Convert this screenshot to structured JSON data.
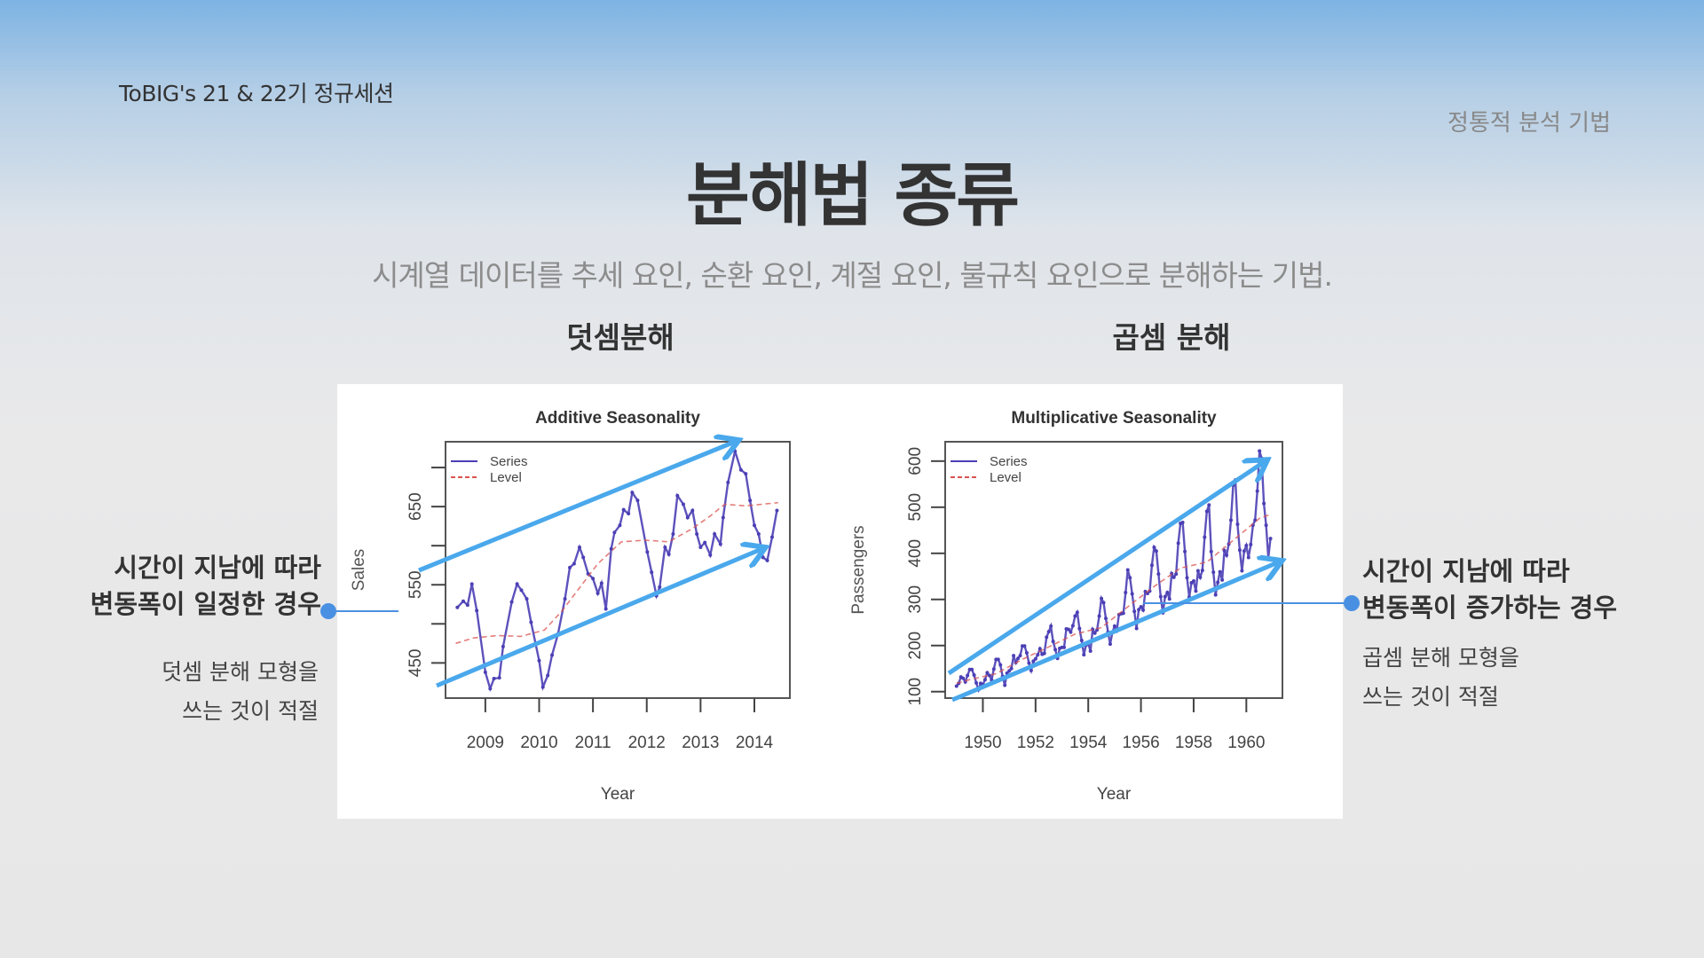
{
  "header": {
    "session": "ToBIG's 21 & 22기 정규세션",
    "section": "정통적 분석 기법"
  },
  "title": "분해법 종류",
  "subtitle": "시계열 데이터를 추세 요인, 순환 요인, 계절 요인, 불규칙 요인으로 분해하는 기법.",
  "columns": {
    "left": "덧셈분해",
    "right": "곱셈 분해"
  },
  "annotations": {
    "left": {
      "line1": "시간이 지남에 따라",
      "line2": "변동폭이 일정한 경우",
      "sub1": "덧셈 분해 모형을",
      "sub2": "쓰는 것이 적절"
    },
    "right": {
      "line1": "시간이 지남에 따라",
      "line2": "변동폭이 증가하는 경우",
      "sub1": "곱셈 분해 모형을",
      "sub2": "쓰는 것이 적절"
    }
  },
  "colors": {
    "accent": "#4aa8ec",
    "series": "#4b3fb5",
    "level": "#d9534f"
  },
  "chart_data": [
    {
      "type": "line",
      "title": "Additive Seasonality",
      "xlabel": "Year",
      "ylabel": "Sales",
      "xlim": [
        2008.26,
        2014.66
      ],
      "ylim": [
        405,
        733
      ],
      "xticks": [
        2009,
        2010,
        2011,
        2012,
        2013,
        2014
      ],
      "xtick_labels": [
        "2009",
        "2010",
        "2011",
        "2012",
        "2013",
        "2014"
      ],
      "yticks": [
        450,
        500,
        550,
        600,
        650,
        700
      ],
      "ytick_labels": [
        "450",
        "",
        "550",
        "",
        "650",
        ""
      ],
      "legend": {
        "position": "top-left",
        "entries": [
          "Series",
          "Level"
        ]
      },
      "grid": false,
      "series": [
        {
          "name": "Series",
          "style": "solid-markers",
          "x": [
            2008.48,
            2008.59,
            2008.67,
            2008.75,
            2008.84,
            2009.0,
            2009.09,
            2009.16,
            2009.26,
            2009.33,
            2009.49,
            2009.59,
            2009.67,
            2009.77,
            2009.85,
            2010.0,
            2010.07,
            2010.16,
            2010.24,
            2010.35,
            2010.48,
            2010.57,
            2010.65,
            2010.75,
            2010.82,
            2010.91,
            2011.0,
            2011.09,
            2011.16,
            2011.24,
            2011.34,
            2011.4,
            2011.5,
            2011.57,
            2011.66,
            2011.73,
            2011.83,
            2012.01,
            2012.09,
            2012.18,
            2012.24,
            2012.34,
            2012.41,
            2012.49,
            2012.57,
            2012.68,
            2012.76,
            2012.85,
            2012.93,
            2013.0,
            2013.08,
            2013.18,
            2013.26,
            2013.37,
            2013.42,
            2013.51,
            2013.64,
            2013.75,
            2013.84,
            2013.92,
            2014.0,
            2014.08,
            2014.16,
            2014.24,
            2014.33,
            2014.42
          ],
          "y": [
            521,
            529,
            524,
            551,
            517,
            438,
            417,
            430,
            431,
            471,
            528,
            551,
            543,
            532,
            502,
            453,
            419,
            434,
            460,
            487,
            532,
            572,
            577,
            598,
            585,
            564,
            558,
            539,
            552,
            519,
            596,
            617,
            626,
            646,
            641,
            668,
            658,
            592,
            566,
            536,
            547,
            598,
            589,
            615,
            664,
            653,
            636,
            645,
            615,
            598,
            604,
            588,
            615,
            602,
            636,
            681,
            721,
            697,
            692,
            658,
            626,
            615,
            585,
            581,
            611,
            645
          ]
        },
        {
          "name": "Level",
          "style": "dashed",
          "x": [
            2008.45,
            2008.78,
            2009.22,
            2009.66,
            2010.1,
            2010.43,
            2010.76,
            2011.09,
            2011.53,
            2011.97,
            2012.41,
            2012.85,
            2013.18,
            2013.45,
            2013.84,
            2014.44
          ],
          "y": [
            475,
            482,
            485,
            484,
            492,
            517,
            547,
            577,
            605,
            607,
            605,
            622,
            638,
            653,
            651,
            655
          ]
        }
      ]
    },
    {
      "type": "line",
      "title": "Multiplicative Seasonality",
      "xlabel": "Year",
      "ylabel": "Passengers",
      "xlim": [
        1948.57,
        1961.37
      ],
      "ylim": [
        86,
        642
      ],
      "xticks": [
        1950,
        1952,
        1954,
        1956,
        1958,
        1960
      ],
      "xtick_labels": [
        "1950",
        "1952",
        "1954",
        "1956",
        "1958",
        "1960"
      ],
      "yticks": [
        100,
        200,
        300,
        400,
        500,
        600
      ],
      "ytick_labels": [
        "100",
        "200",
        "300",
        "400",
        "500",
        "600"
      ],
      "legend": {
        "position": "top-left",
        "entries": [
          "Series",
          "Level"
        ]
      },
      "grid": false,
      "series": [
        {
          "name": "Series",
          "style": "solid-markers",
          "x_start": 1949,
          "x_step_months": 1,
          "y": [
            112,
            118,
            132,
            129,
            121,
            135,
            148,
            148,
            136,
            119,
            104,
            118,
            115,
            126,
            141,
            135,
            125,
            149,
            170,
            170,
            158,
            133,
            114,
            140,
            145,
            150,
            178,
            163,
            172,
            178,
            199,
            199,
            184,
            162,
            146,
            166,
            171,
            180,
            193,
            181,
            183,
            218,
            230,
            242,
            209,
            191,
            172,
            194,
            196,
            196,
            236,
            235,
            229,
            243,
            264,
            272,
            237,
            211,
            180,
            201,
            204,
            188,
            235,
            227,
            234,
            264,
            302,
            293,
            259,
            229,
            203,
            229,
            242,
            233,
            267,
            269,
            270,
            315,
            364,
            347,
            312,
            274,
            237,
            278,
            284,
            277,
            317,
            313,
            318,
            374,
            413,
            405,
            355,
            306,
            271,
            306,
            315,
            301,
            356,
            348,
            355,
            422,
            465,
            467,
            404,
            347,
            305,
            336,
            340,
            318,
            362,
            348,
            363,
            435,
            491,
            505,
            404,
            359,
            310,
            337,
            360,
            342,
            406,
            396,
            420,
            472,
            548,
            559,
            463,
            407,
            362,
            405,
            417,
            391,
            419,
            461,
            472,
            535,
            622,
            606,
            508,
            461,
            390,
            432
          ]
        },
        {
          "name": "Level",
          "style": "dashed",
          "x": [
            1949.0,
            1949.5,
            1950.5,
            1951.5,
            1952.5,
            1953.5,
            1954.5,
            1955.5,
            1956.5,
            1957.5,
            1958.5,
            1959.5,
            1960.5,
            1960.95
          ],
          "y": [
            118,
            126,
            139,
            170,
            197,
            225,
            239,
            284,
            328,
            368,
            381,
            428,
            476,
            485
          ]
        }
      ]
    }
  ]
}
